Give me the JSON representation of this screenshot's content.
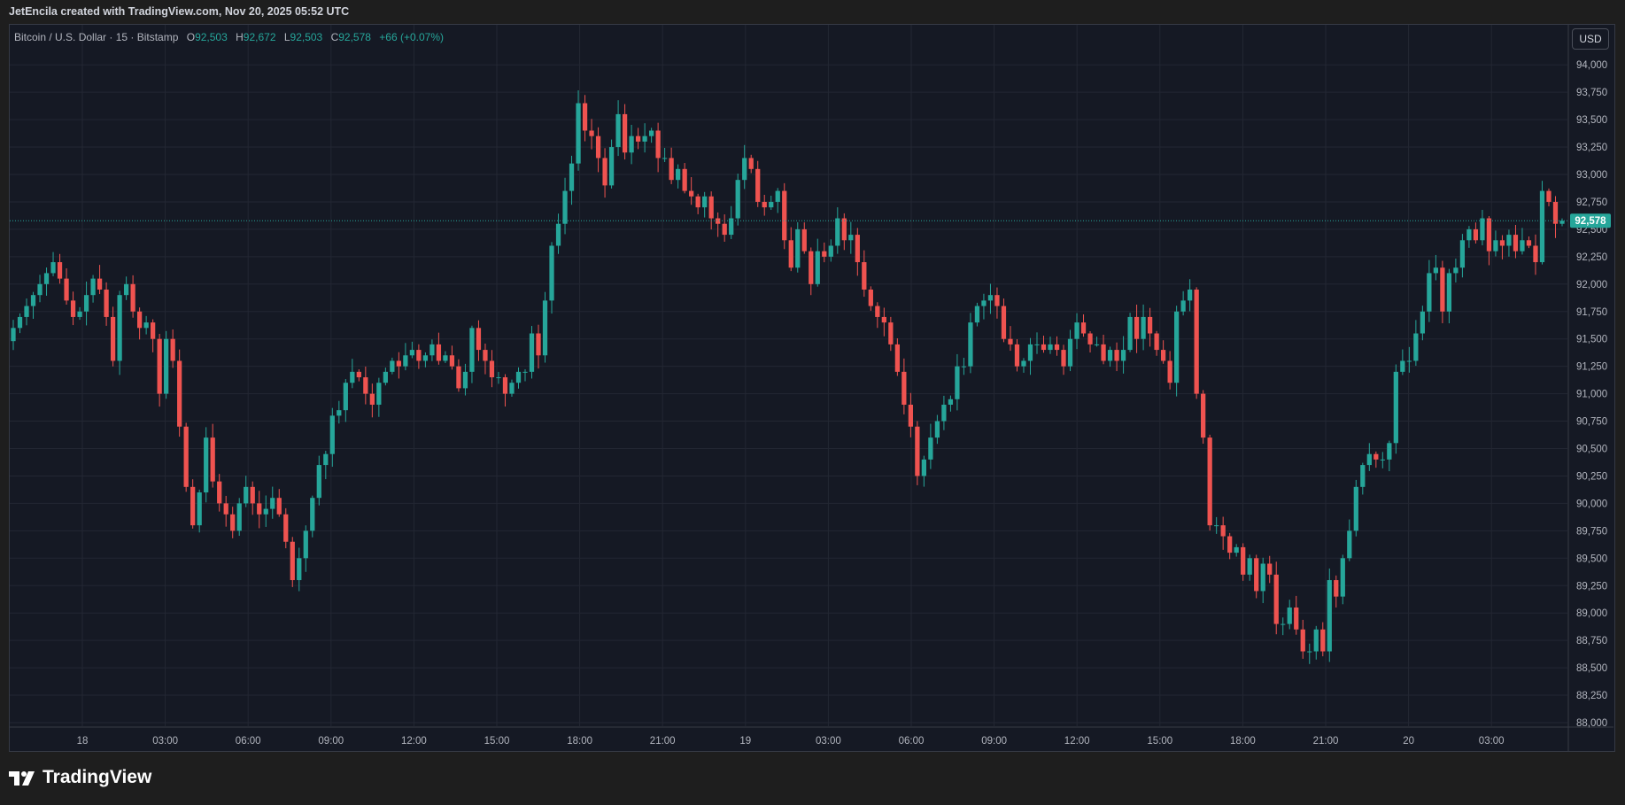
{
  "header": {
    "created_text": "JetEncila created with TradingView.com, Nov 20, 2025 05:52 UTC"
  },
  "legend": {
    "symbol": "Bitcoin / U.S. Dollar · 15 · Bitstamp",
    "o_label": "O",
    "o_value": "92,503",
    "h_label": "H",
    "h_value": "92,672",
    "l_label": "L",
    "l_value": "92,503",
    "c_label": "C",
    "c_value": "92,578",
    "change": "+66 (+0.07%)"
  },
  "currency_button": "USD",
  "last_price_label": "92,578",
  "brand": {
    "name": "TradingView",
    "icon": "tradingview-logo-icon"
  },
  "colors": {
    "background": "#151924",
    "grid": "#232733",
    "up": "#26a69a",
    "down": "#ef5350",
    "text": "#b2b5be"
  },
  "chart_data": {
    "type": "candlestick",
    "title": "Bitcoin / U.S. Dollar · 15 · Bitstamp",
    "ylim": [
      88000,
      94250
    ],
    "y_ticks": [
      88000,
      88250,
      88500,
      88750,
      89000,
      89250,
      89500,
      89750,
      90000,
      90250,
      90500,
      90750,
      91000,
      91250,
      91500,
      91750,
      92000,
      92250,
      92500,
      92750,
      93000,
      93250,
      93500,
      93750,
      94000
    ],
    "y_tick_labels": [
      "88,000",
      "88,250",
      "88,500",
      "88,750",
      "89,000",
      "89,250",
      "89,500",
      "89,750",
      "90,000",
      "90,250",
      "90,500",
      "90,750",
      "91,000",
      "91,250",
      "91,500",
      "91,750",
      "92,000",
      "92,250",
      "92,500",
      "92,750",
      "93,000",
      "93,250",
      "93,500",
      "93,750",
      "94,000"
    ],
    "x_tick_labels": [
      "18",
      "03:00",
      "06:00",
      "09:00",
      "12:00",
      "15:00",
      "18:00",
      "21:00",
      "19",
      "03:00",
      "06:00",
      "09:00",
      "12:00",
      "15:00",
      "18:00",
      "21:00",
      "20",
      "03:00"
    ],
    "last_price": 92578,
    "grid": true,
    "closes": [
      91600,
      91700,
      91800,
      91900,
      92000,
      92100,
      92200,
      92050,
      91850,
      91700,
      91750,
      91900,
      92050,
      91950,
      91700,
      91300,
      91900,
      92000,
      91750,
      91600,
      91650,
      91500,
      91000,
      91500,
      91300,
      90700,
      90150,
      89800,
      90100,
      90600,
      90200,
      90000,
      89900,
      89750,
      90000,
      90150,
      90000,
      89900,
      89950,
      90050,
      89900,
      89650,
      89300,
      89500,
      89750,
      90050,
      90350,
      90450,
      90800,
      90850,
      91100,
      91200,
      91150,
      91000,
      90900,
      91100,
      91200,
      91300,
      91250,
      91350,
      91400,
      91300,
      91350,
      91450,
      91300,
      91350,
      91250,
      91050,
      91200,
      91600,
      91400,
      91300,
      91150,
      91150,
      91000,
      91100,
      91200,
      91200,
      91550,
      91350,
      91850,
      92350,
      92550,
      92850,
      93100,
      93650,
      93400,
      93350,
      93150,
      92900,
      93250,
      93550,
      93200,
      93350,
      93300,
      93350,
      93400,
      93150,
      93150,
      92950,
      93050,
      92850,
      92800,
      92700,
      92800,
      92600,
      92550,
      92450,
      92600,
      92950,
      93150,
      93050,
      92750,
      92700,
      92750,
      92850,
      92400,
      92150,
      92500,
      92300,
      92000,
      92300,
      92250,
      92350,
      92600,
      92400,
      92450,
      92200,
      91950,
      91800,
      91700,
      91650,
      91450,
      91200,
      90900,
      90700,
      90250,
      90400,
      90600,
      90750,
      90900,
      90950,
      91250,
      91250,
      91650,
      91800,
      91850,
      91900,
      91800,
      91500,
      91450,
      91250,
      91300,
      91450,
      91450,
      91400,
      91450,
      91400,
      91250,
      91500,
      91650,
      91550,
      91450,
      91450,
      91300,
      91400,
      91300,
      91400,
      91700,
      91500,
      91700,
      91550,
      91400,
      91300,
      91100,
      91750,
      91850,
      91950,
      91000,
      90600,
      89800,
      89800,
      89700,
      89550,
      89600,
      89350,
      89500,
      89200,
      89450,
      89350,
      88900,
      88900,
      89050,
      88850,
      88650,
      88650,
      88850,
      88650,
      89300,
      89150,
      89500,
      89750,
      90150,
      90350,
      90450,
      90400,
      90400,
      90550,
      91200,
      91300,
      91300,
      91550,
      91750,
      92100,
      92150,
      91750,
      92100,
      92150,
      92400,
      92500,
      92400,
      92600,
      92300,
      92400,
      92350,
      92450,
      92300,
      92400,
      92350,
      92200,
      92850,
      92750,
      92550,
      92578
    ]
  }
}
